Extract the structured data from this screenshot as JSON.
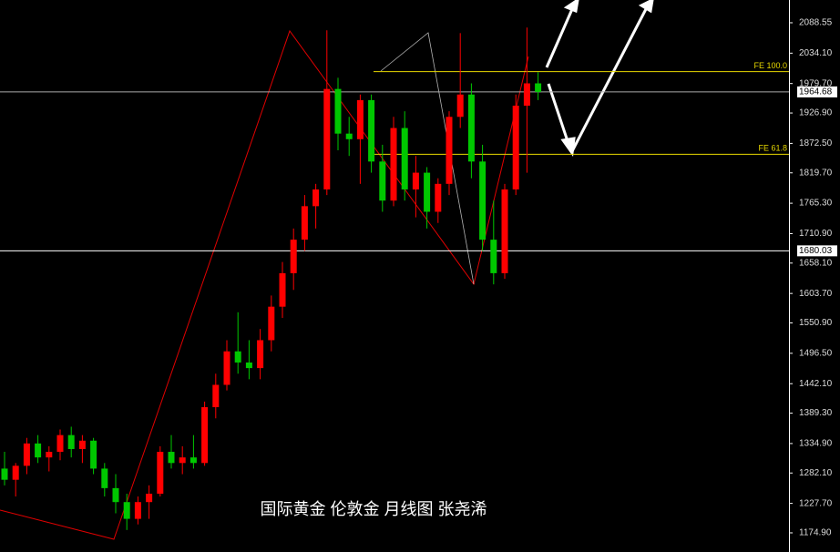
{
  "chart_data": {
    "type": "candlestick",
    "title": "国际黄金 伦敦金  月线图 张尧浠",
    "open": [
      1290,
      1270,
      1295,
      1335,
      1310,
      1320,
      1350,
      1325,
      1340,
      1290,
      1255,
      1230,
      1200,
      1230,
      1245,
      1320,
      1300,
      1310,
      1300,
      1400,
      1440,
      1500,
      1480,
      1470,
      1520,
      1580,
      1640,
      1700,
      1760,
      1790,
      1970,
      1890,
      1880,
      1950,
      1840,
      1770,
      1900,
      1790,
      1820,
      1750,
      1800,
      1920,
      1960,
      1840,
      1700,
      1640,
      1790,
      1940,
      1980
    ],
    "high": [
      1320,
      1300,
      1345,
      1350,
      1330,
      1360,
      1365,
      1350,
      1345,
      1300,
      1280,
      1245,
      1240,
      1260,
      1330,
      1350,
      1330,
      1350,
      1410,
      1460,
      1520,
      1570,
      1520,
      1540,
      1600,
      1660,
      1720,
      1780,
      1800,
      2075,
      1990,
      1920,
      1960,
      1960,
      1870,
      1920,
      1930,
      1850,
      1830,
      1810,
      1930,
      2070,
      1980,
      1870,
      1770,
      1800,
      1960,
      2080,
      2000
    ],
    "low": [
      1260,
      1240,
      1280,
      1300,
      1285,
      1305,
      1310,
      1300,
      1280,
      1240,
      1210,
      1180,
      1190,
      1200,
      1240,
      1290,
      1280,
      1290,
      1295,
      1380,
      1430,
      1460,
      1450,
      1450,
      1500,
      1560,
      1610,
      1680,
      1720,
      1780,
      1860,
      1850,
      1800,
      1820,
      1750,
      1760,
      1770,
      1740,
      1720,
      1730,
      1780,
      1900,
      1810,
      1680,
      1620,
      1630,
      1780,
      1820,
      1950
    ],
    "close": [
      1270,
      1295,
      1335,
      1310,
      1320,
      1350,
      1325,
      1340,
      1290,
      1255,
      1230,
      1200,
      1230,
      1245,
      1320,
      1300,
      1310,
      1300,
      1400,
      1440,
      1500,
      1480,
      1470,
      1520,
      1580,
      1640,
      1700,
      1760,
      1790,
      1970,
      1890,
      1880,
      1950,
      1840,
      1770,
      1900,
      1790,
      1820,
      1750,
      1800,
      1920,
      1960,
      1840,
      1700,
      1640,
      1790,
      1940,
      1980,
      1964.68
    ],
    "up_color": "#ff0000",
    "down_color": "#00c800",
    "ylim": [
      1140.6,
      2129.3
    ],
    "yticks": [
      2088.55,
      {
        "value": 2034.1,
        "label": "2034.10"
      },
      {
        "value": 1979.7,
        "label": "1979.70"
      },
      {
        "value": 1926.9,
        "label": "1926.90"
      },
      {
        "value": 1872.5,
        "label": "1872.50"
      },
      {
        "value": 1819.7,
        "label": "1819.70"
      },
      {
        "value": 1765.3,
        "label": "1765.30"
      },
      {
        "value": 1710.9,
        "label": "1710.90"
      },
      {
        "value": 1658.1,
        "label": "1658.10"
      },
      {
        "value": 1603.7,
        "label": "1603.70"
      },
      {
        "value": 1550.9,
        "label": "1550.90"
      },
      {
        "value": 1496.5,
        "label": "1496.50"
      },
      {
        "value": 1442.1,
        "label": "1442.10"
      },
      {
        "value": 1389.3,
        "label": "1389.30"
      },
      {
        "value": 1334.9,
        "label": "1334.90"
      },
      {
        "value": 1282.1,
        "label": "1282.10"
      },
      {
        "value": 1227.7,
        "label": "1227.70"
      },
      {
        "value": 1174.9,
        "label": "1174.90"
      }
    ],
    "price_levels": [
      1964.68,
      1680.03
    ],
    "fe_levels": [
      {
        "value": 2001,
        "label": "FE 100.0"
      },
      {
        "value": 1853,
        "label": "FE 61.8"
      }
    ]
  }
}
